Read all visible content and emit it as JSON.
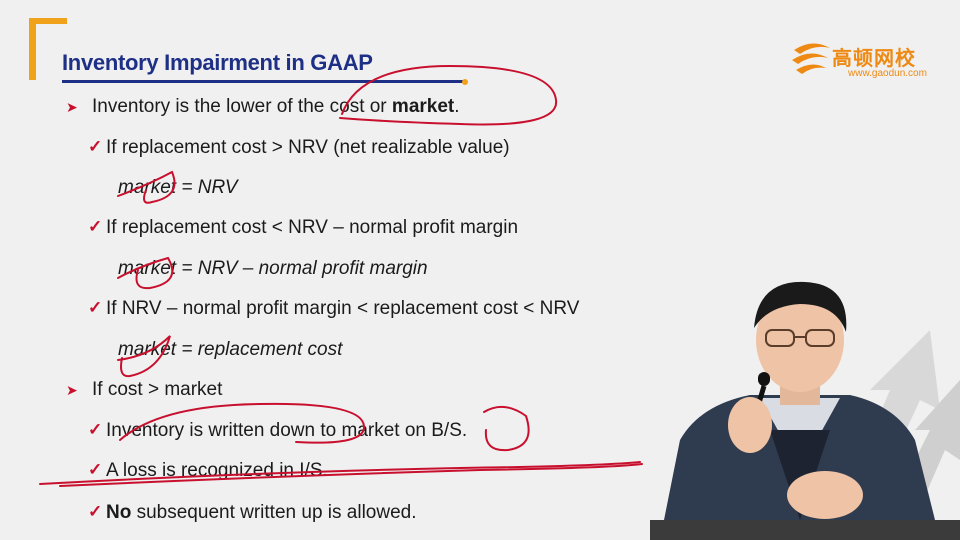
{
  "slide": {
    "title": "Inventory Impairment in GAAP",
    "logo": {
      "brand_cn": "高顿网校",
      "url": "www.gaodun.com"
    },
    "bullets": [
      {
        "level": 1,
        "prefix": "Inventory is the lower of the cost or ",
        "bold": "market",
        "suffix": "."
      },
      {
        "level": 2,
        "text": "If replacement cost > NRV (net realizable value)"
      },
      {
        "level": 3,
        "text": "market = NRV"
      },
      {
        "level": 2,
        "text": "If replacement cost < NRV – normal profit margin"
      },
      {
        "level": 3,
        "text": "market = NRV – normal profit margin"
      },
      {
        "level": 2,
        "text": "If NRV – normal profit margin < replacement cost < NRV"
      },
      {
        "level": 3,
        "text": "market = replacement cost"
      },
      {
        "level": 1,
        "text": "If cost > market"
      },
      {
        "level": 2,
        "text": "Inventory is written down to market on B/S."
      },
      {
        "level": 2,
        "text": "A loss is recognized in I/S."
      },
      {
        "level": 2,
        "bold": "No",
        "suffix": " subsequent written up is allowed."
      }
    ]
  },
  "colors": {
    "title": "#1e2f86",
    "accent_orange": "#f0a21b",
    "annotation_red": "#c8102e"
  }
}
